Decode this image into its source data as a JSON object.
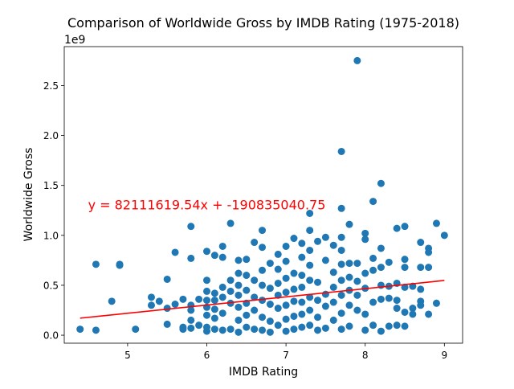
{
  "chart_data": {
    "type": "scatter",
    "title": "Comparison of Worldwide Gross by IMDB Rating (1975-2018)",
    "xlabel": "IMDB Rating",
    "ylabel": "Worldwide Gross",
    "y_offset_label": "1e9",
    "xlim": [
      4.2,
      9.23
    ],
    "ylim": [
      -0.08,
      2.89
    ],
    "y_unit_multiplier": 1000000000,
    "x_ticks": [
      5,
      6,
      7,
      8,
      9
    ],
    "x_tick_labels": [
      "5",
      "6",
      "7",
      "8",
      "9"
    ],
    "y_ticks": [
      0.0,
      0.5,
      1.0,
      1.5,
      2.0,
      2.5
    ],
    "y_tick_labels": [
      "0.0",
      "0.5",
      "1.0",
      "1.5",
      "2.0",
      "2.5"
    ],
    "grid": false,
    "marker_color": "#1f77b4",
    "regression": {
      "slope": 82111619.54,
      "intercept": -190835040.75,
      "x_range": [
        4.4,
        9.0
      ],
      "color": "#ff0000",
      "equation_label": "y = 82111619.54x + -190835040.75",
      "label_position_data": [
        4.5,
        1.26
      ]
    },
    "points": [
      [
        4.4,
        0.06
      ],
      [
        4.6,
        0.71
      ],
      [
        4.6,
        0.05
      ],
      [
        4.8,
        0.34
      ],
      [
        4.9,
        0.71
      ],
      [
        4.9,
        0.7
      ],
      [
        5.1,
        0.06
      ],
      [
        5.3,
        0.38
      ],
      [
        5.3,
        0.3
      ],
      [
        5.4,
        0.34
      ],
      [
        5.5,
        0.56
      ],
      [
        5.5,
        0.27
      ],
      [
        5.5,
        0.11
      ],
      [
        5.6,
        0.83
      ],
      [
        5.6,
        0.31
      ],
      [
        5.7,
        0.36
      ],
      [
        5.7,
        0.08
      ],
      [
        5.7,
        0.06
      ],
      [
        5.8,
        1.09
      ],
      [
        5.8,
        0.77
      ],
      [
        5.8,
        0.3
      ],
      [
        5.8,
        0.25
      ],
      [
        5.8,
        0.15
      ],
      [
        5.8,
        0.07
      ],
      [
        5.9,
        0.36
      ],
      [
        5.9,
        0.1
      ],
      [
        6.0,
        0.84
      ],
      [
        6.0,
        0.55
      ],
      [
        6.0,
        0.44
      ],
      [
        6.0,
        0.35
      ],
      [
        6.0,
        0.28
      ],
      [
        6.0,
        0.2
      ],
      [
        6.0,
        0.08
      ],
      [
        6.0,
        0.04
      ],
      [
        6.1,
        0.8
      ],
      [
        6.1,
        0.42
      ],
      [
        6.1,
        0.35
      ],
      [
        6.1,
        0.26
      ],
      [
        6.1,
        0.17
      ],
      [
        6.1,
        0.06
      ],
      [
        6.2,
        0.89
      ],
      [
        6.2,
        0.78
      ],
      [
        6.2,
        0.48
      ],
      [
        6.2,
        0.38
      ],
      [
        6.2,
        0.22
      ],
      [
        6.2,
        0.05
      ],
      [
        6.3,
        1.12
      ],
      [
        6.3,
        0.55
      ],
      [
        6.3,
        0.44
      ],
      [
        6.3,
        0.32
      ],
      [
        6.3,
        0.06
      ],
      [
        6.4,
        0.75
      ],
      [
        6.4,
        0.62
      ],
      [
        6.4,
        0.5
      ],
      [
        6.4,
        0.4
      ],
      [
        6.4,
        0.28
      ],
      [
        6.4,
        0.15
      ],
      [
        6.4,
        0.03
      ],
      [
        6.5,
        0.76
      ],
      [
        6.5,
        0.6
      ],
      [
        6.5,
        0.45
      ],
      [
        6.5,
        0.32
      ],
      [
        6.5,
        0.2
      ],
      [
        6.5,
        0.08
      ],
      [
        6.6,
        0.93
      ],
      [
        6.6,
        0.55
      ],
      [
        6.6,
        0.38
      ],
      [
        6.6,
        0.25
      ],
      [
        6.6,
        0.06
      ],
      [
        6.7,
        1.05
      ],
      [
        6.7,
        0.88
      ],
      [
        6.7,
        0.65
      ],
      [
        6.7,
        0.5
      ],
      [
        6.7,
        0.35
      ],
      [
        6.7,
        0.18
      ],
      [
        6.7,
        0.05
      ],
      [
        6.8,
        0.72
      ],
      [
        6.8,
        0.47
      ],
      [
        6.8,
        0.31
      ],
      [
        6.8,
        0.14
      ],
      [
        6.8,
        0.03
      ],
      [
        6.9,
        0.81
      ],
      [
        6.9,
        0.66
      ],
      [
        6.9,
        0.52
      ],
      [
        6.9,
        0.4
      ],
      [
        6.9,
        0.27
      ],
      [
        6.9,
        0.1
      ],
      [
        7.0,
        0.89
      ],
      [
        7.0,
        0.74
      ],
      [
        7.0,
        0.57
      ],
      [
        7.0,
        0.43
      ],
      [
        7.0,
        0.3
      ],
      [
        7.0,
        0.16
      ],
      [
        7.0,
        0.04
      ],
      [
        7.1,
        0.97
      ],
      [
        7.1,
        0.62
      ],
      [
        7.1,
        0.46
      ],
      [
        7.1,
        0.34
      ],
      [
        7.1,
        0.19
      ],
      [
        7.1,
        0.06
      ],
      [
        7.2,
        0.92
      ],
      [
        7.2,
        0.78
      ],
      [
        7.2,
        0.6
      ],
      [
        7.2,
        0.48
      ],
      [
        7.2,
        0.33
      ],
      [
        7.2,
        0.21
      ],
      [
        7.2,
        0.08
      ],
      [
        7.3,
        1.22
      ],
      [
        7.3,
        1.05
      ],
      [
        7.3,
        0.85
      ],
      [
        7.3,
        0.7
      ],
      [
        7.3,
        0.55
      ],
      [
        7.3,
        0.38
      ],
      [
        7.3,
        0.25
      ],
      [
        7.3,
        0.1
      ],
      [
        7.4,
        0.94
      ],
      [
        7.4,
        0.53
      ],
      [
        7.4,
        0.35
      ],
      [
        7.4,
        0.18
      ],
      [
        7.4,
        0.05
      ],
      [
        7.5,
        0.98
      ],
      [
        7.5,
        0.75
      ],
      [
        7.5,
        0.41
      ],
      [
        7.5,
        0.29
      ],
      [
        7.5,
        0.07
      ],
      [
        7.6,
        0.9
      ],
      [
        7.6,
        0.63
      ],
      [
        7.6,
        0.48
      ],
      [
        7.6,
        0.33
      ],
      [
        7.6,
        0.15
      ],
      [
        7.7,
        1.84
      ],
      [
        7.7,
        1.27
      ],
      [
        7.7,
        0.98
      ],
      [
        7.7,
        0.85
      ],
      [
        7.7,
        0.71
      ],
      [
        7.7,
        0.55
      ],
      [
        7.7,
        0.4
      ],
      [
        7.7,
        0.22
      ],
      [
        7.7,
        0.06
      ],
      [
        7.8,
        1.11
      ],
      [
        7.8,
        0.72
      ],
      [
        7.8,
        0.58
      ],
      [
        7.8,
        0.45
      ],
      [
        7.8,
        0.3
      ],
      [
        7.8,
        0.09
      ],
      [
        7.9,
        2.75
      ],
      [
        7.9,
        0.72
      ],
      [
        7.9,
        0.54
      ],
      [
        7.9,
        0.4
      ],
      [
        7.9,
        0.25
      ],
      [
        8.0,
        1.02
      ],
      [
        8.0,
        0.96
      ],
      [
        8.0,
        0.62
      ],
      [
        8.0,
        0.47
      ],
      [
        8.0,
        0.21
      ],
      [
        8.0,
        0.05
      ],
      [
        8.1,
        1.34
      ],
      [
        8.1,
        0.77
      ],
      [
        8.1,
        0.65
      ],
      [
        8.1,
        0.33
      ],
      [
        8.1,
        0.1
      ],
      [
        8.2,
        1.52
      ],
      [
        8.2,
        0.87
      ],
      [
        8.2,
        0.68
      ],
      [
        8.2,
        0.5
      ],
      [
        8.2,
        0.36
      ],
      [
        8.2,
        0.04
      ],
      [
        8.3,
        0.73
      ],
      [
        8.3,
        0.49
      ],
      [
        8.3,
        0.37
      ],
      [
        8.3,
        0.09
      ],
      [
        8.4,
        1.07
      ],
      [
        8.4,
        0.52
      ],
      [
        8.4,
        0.35
      ],
      [
        8.4,
        0.27
      ],
      [
        8.4,
        0.1
      ],
      [
        8.5,
        1.09
      ],
      [
        8.5,
        0.76
      ],
      [
        8.5,
        0.68
      ],
      [
        8.5,
        0.48
      ],
      [
        8.5,
        0.23
      ],
      [
        8.5,
        0.09
      ],
      [
        8.6,
        0.49
      ],
      [
        8.6,
        0.27
      ],
      [
        8.6,
        0.21
      ],
      [
        8.7,
        0.93
      ],
      [
        8.7,
        0.68
      ],
      [
        8.7,
        0.46
      ],
      [
        8.7,
        0.34
      ],
      [
        8.7,
        0.3
      ],
      [
        8.8,
        0.87
      ],
      [
        8.8,
        0.83
      ],
      [
        8.8,
        0.68
      ],
      [
        8.8,
        0.21
      ],
      [
        8.9,
        1.12
      ],
      [
        8.9,
        0.32
      ],
      [
        9.0,
        1.0
      ]
    ]
  }
}
